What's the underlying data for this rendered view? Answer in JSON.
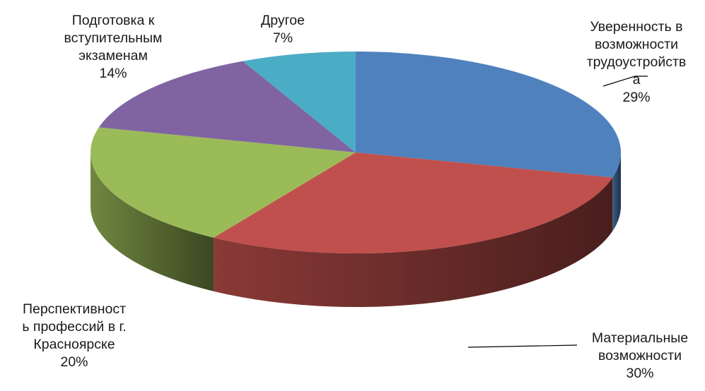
{
  "chart_data": {
    "type": "pie",
    "title": "",
    "three_d": true,
    "slices": [
      {
        "name": "Уверенность в возможности трудоустройства",
        "value": 29,
        "label_lines": [
          "Уверенность в",
          "возможности",
          "трудоустройств",
          "а"
        ],
        "pct": "29%",
        "color": "#4F81BD"
      },
      {
        "name": "Материальные возможности",
        "value": 30,
        "label_lines": [
          "Материальные",
          "возможности"
        ],
        "pct": "30%",
        "color": "#C0504D"
      },
      {
        "name": "Перспективность профессий в г. Красноярске",
        "value": 20,
        "label_lines": [
          "Перспективност",
          "ь профессий в г.",
          "Красноярске"
        ],
        "pct": "20%",
        "color": "#9BBB59"
      },
      {
        "name": "Подготовка к вступительным экзаменам",
        "value": 14,
        "label_lines": [
          "Подготовка к",
          "вступительным",
          "экзаменам"
        ],
        "pct": "14%",
        "color": "#8064A2"
      },
      {
        "name": "Другое",
        "value": 7,
        "label_lines": [
          "Другое"
        ],
        "pct": "7%",
        "color": "#4BACC6"
      }
    ]
  }
}
